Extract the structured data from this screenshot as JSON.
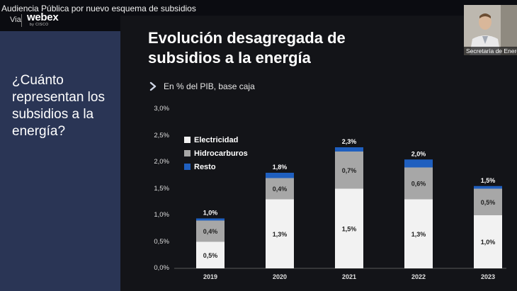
{
  "meeting_title": "Audiencia Pública por nuevo esquema de subsidios",
  "via_label": "Via",
  "webex_brand": "webex",
  "webex_sub": "by CISCO",
  "question": "¿Cuánto representan los subsidios a la energía?",
  "participant_name": "Secretaría de Energía",
  "colors": {
    "electricidad": "#f2f2f2",
    "hidrocarburos": "#a7a7a7",
    "resto": "#1f5fbf",
    "left_panel": "#2a3555"
  },
  "chart_data": {
    "type": "bar",
    "stacked": true,
    "title": "Evolución desagregada de subsidios a la energía",
    "subtitle": "En % del PIB, base caja",
    "categories": [
      "2019",
      "2020",
      "2021",
      "2022",
      "2023"
    ],
    "y_ticks": [
      "0,0%",
      "0,5%",
      "1,0%",
      "1,5%",
      "2,0%",
      "2,5%",
      "3,0%"
    ],
    "ylim": [
      0,
      3.0
    ],
    "legend_position": "top-left",
    "series": [
      {
        "name": "Electricidad",
        "values": [
          0.5,
          1.3,
          1.5,
          1.3,
          1.0
        ],
        "labels": [
          "0,5%",
          "1,3%",
          "1,5%",
          "1,3%",
          "1,0%"
        ]
      },
      {
        "name": "Hidrocarburos",
        "values": [
          0.4,
          0.4,
          0.7,
          0.6,
          0.5
        ],
        "labels": [
          "0,4%",
          "0,4%",
          "0,7%",
          "0,6%",
          "0,5%"
        ]
      },
      {
        "name": "Resto",
        "values": [
          0.04,
          0.1,
          0.08,
          0.15,
          0.05
        ],
        "labels": []
      }
    ],
    "totals": [
      "1,0%",
      "1,8%",
      "2,3%",
      "2,0%",
      "1,5%"
    ]
  }
}
